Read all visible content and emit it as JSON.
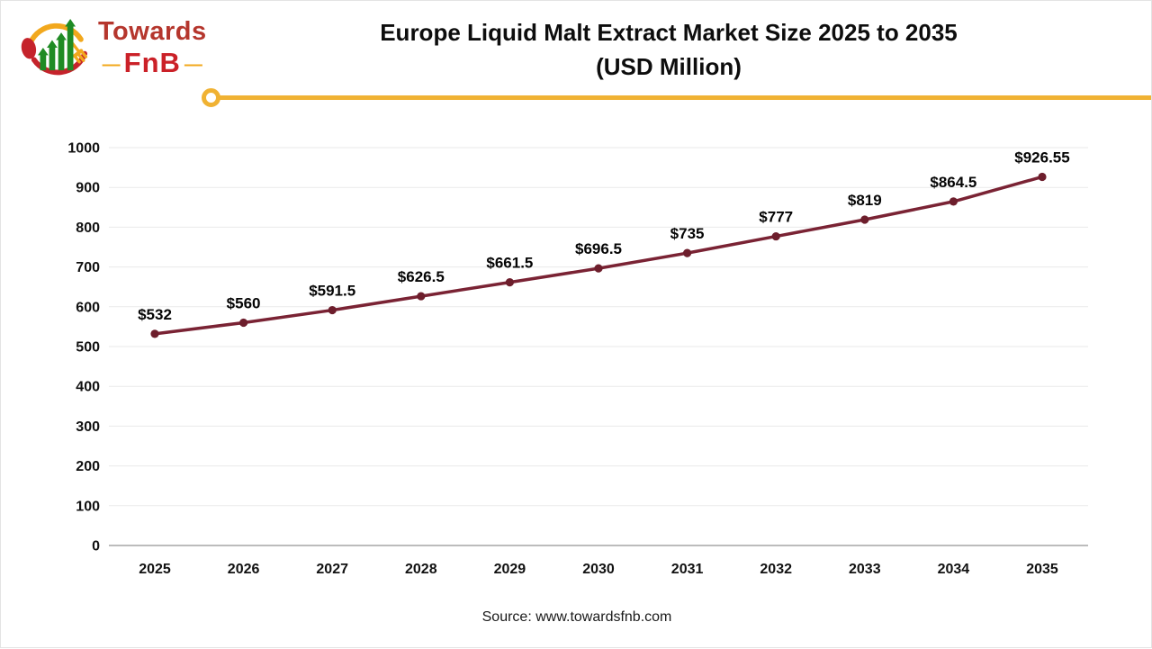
{
  "logo": {
    "brand_top": "Towards",
    "brand_bottom": "FnB",
    "dash": "—"
  },
  "header": {
    "title_line1": "Europe Liquid Malt Extract Market Size 2025 to 2035",
    "title_line2": "(USD Million)"
  },
  "chart_data": {
    "type": "line",
    "title": "Europe Liquid Malt Extract Market Size 2025 to 2035 (USD Million)",
    "categories": [
      "2025",
      "2026",
      "2027",
      "2028",
      "2029",
      "2030",
      "2031",
      "2032",
      "2033",
      "2034",
      "2035"
    ],
    "values": [
      532,
      560,
      591.5,
      626.5,
      661.5,
      696.5,
      735,
      777,
      819,
      864.5,
      926.55
    ],
    "point_labels": [
      "$532",
      "$560",
      "$591.5",
      "$626.5",
      "$661.5",
      "$696.5",
      "$735",
      "$777",
      "$819",
      "$864.5",
      "$926.55"
    ],
    "xlabel": "",
    "ylabel": "",
    "ylim": [
      0,
      1000
    ],
    "ytick_step": 100,
    "grid": true,
    "legend": "none",
    "line_color": "#7a2334",
    "marker_color": "#6d1e2c",
    "gridline_color": "#eaeaea",
    "axis_line_color": "#a6a6a6"
  },
  "footer": {
    "source": "Source: www.towardsfnb.com"
  },
  "colors": {
    "accent_yellow": "#f0b233",
    "brand_red": "#c5232b",
    "brand_green": "#1f8b24",
    "line_maroon": "#7a2334"
  }
}
